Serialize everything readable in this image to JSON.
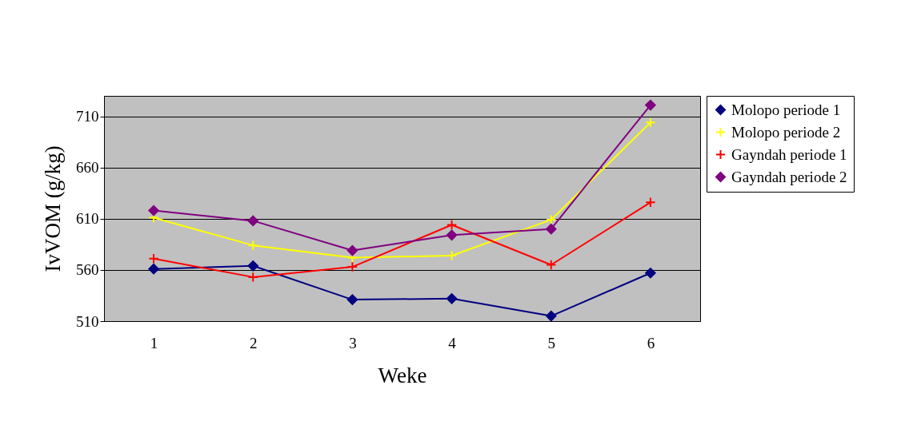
{
  "chart_data": {
    "type": "line",
    "xlabel": "Weke",
    "ylabel": "IvVOM (g/kg)",
    "categories": [
      "1",
      "2",
      "3",
      "4",
      "5",
      "6"
    ],
    "series": [
      {
        "name": "Molopo periode 1",
        "color": "#000080",
        "marker": "diamond",
        "values": [
          561,
          564,
          531,
          532,
          515,
          557
        ]
      },
      {
        "name": "Molopo periode 2",
        "color": "#ffff00",
        "marker": "cross",
        "values": [
          611,
          584,
          572,
          574,
          609,
          704
        ]
      },
      {
        "name": "Gayndah periode 1",
        "color": "#ff0000",
        "marker": "cross",
        "values": [
          571,
          553,
          563,
          604,
          565,
          626
        ]
      },
      {
        "name": "Gayndah periode 2",
        "color": "#800080",
        "marker": "diamond",
        "values": [
          618,
          608,
          579,
          594,
          600,
          721
        ]
      }
    ],
    "ylim": [
      510,
      730
    ],
    "yticks": [
      510,
      560,
      610,
      660,
      710
    ],
    "grid": "y",
    "legend": "right"
  }
}
